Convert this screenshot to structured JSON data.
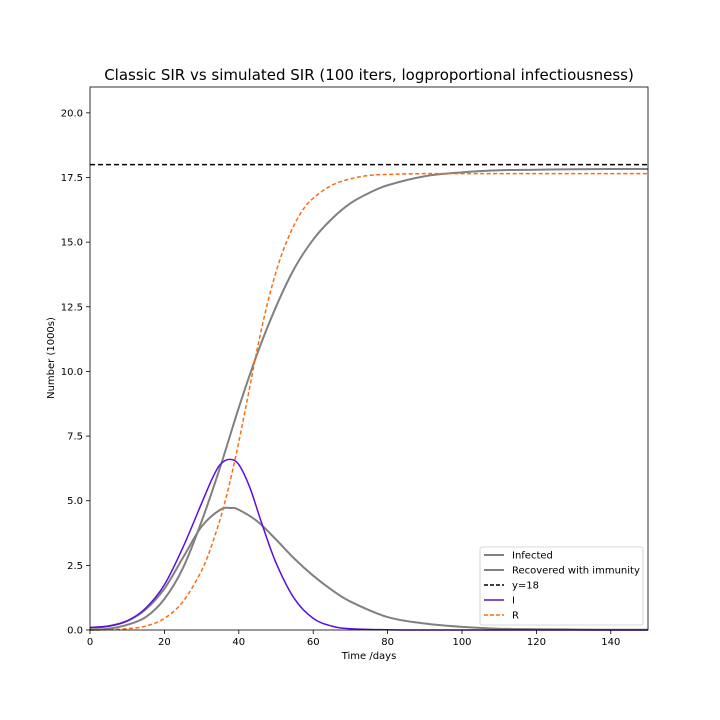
{
  "chart_data": {
    "type": "line",
    "title": "Classic SIR vs simulated SIR (100 iters, logproportional infectiousness)",
    "xlabel": "Time /days",
    "ylabel": "Number (1000s)",
    "xlim": [
      0,
      150
    ],
    "ylim": [
      0,
      21
    ],
    "xticks": [
      0,
      20,
      40,
      60,
      80,
      100,
      120,
      140
    ],
    "yticks": [
      0.0,
      2.5,
      5.0,
      7.5,
      10.0,
      12.5,
      15.0,
      17.5,
      20.0
    ],
    "xtick_labels": [
      "0",
      "20",
      "40",
      "60",
      "80",
      "100",
      "120",
      "140"
    ],
    "ytick_labels": [
      "0.0",
      "2.5",
      "5.0",
      "7.5",
      "10.0",
      "12.5",
      "15.0",
      "17.5",
      "20.0"
    ],
    "grid": false,
    "legend_position": "bottom-right",
    "series": [
      {
        "name": "Infected",
        "color": "#808080",
        "style": "solid",
        "x": [
          0,
          5,
          10,
          15,
          20,
          25,
          30,
          35,
          38,
          40,
          45,
          50,
          55,
          60,
          65,
          70,
          80,
          90,
          100,
          110,
          120,
          130,
          140,
          150
        ],
        "y": [
          0.08,
          0.15,
          0.35,
          0.8,
          1.6,
          2.8,
          4.0,
          4.65,
          4.72,
          4.65,
          4.2,
          3.5,
          2.75,
          2.1,
          1.55,
          1.1,
          0.5,
          0.25,
          0.12,
          0.05,
          0.03,
          0.02,
          0.01,
          0.01
        ]
      },
      {
        "name": "Recovered with immunity",
        "color": "#808080",
        "style": "solid",
        "x": [
          0,
          5,
          10,
          15,
          20,
          25,
          30,
          35,
          40,
          45,
          50,
          55,
          60,
          65,
          70,
          75,
          80,
          90,
          100,
          110,
          120,
          130,
          140,
          150
        ],
        "y": [
          0.0,
          0.05,
          0.2,
          0.5,
          1.2,
          2.4,
          4.2,
          6.3,
          8.6,
          10.7,
          12.5,
          14.0,
          15.1,
          15.9,
          16.5,
          16.9,
          17.2,
          17.55,
          17.7,
          17.78,
          17.8,
          17.82,
          17.83,
          17.83
        ]
      },
      {
        "name": "y=18",
        "color": "#000000",
        "style": "dashed",
        "x": [
          0,
          150
        ],
        "y": [
          18,
          18
        ]
      },
      {
        "name": "I",
        "color": "#5a0fe0",
        "style": "solid",
        "x": [
          0,
          5,
          10,
          15,
          20,
          25,
          30,
          33,
          35,
          37.5,
          40,
          43,
          46,
          50,
          55,
          60,
          65,
          70,
          80,
          90,
          150
        ],
        "y": [
          0.1,
          0.15,
          0.35,
          0.85,
          1.75,
          3.2,
          4.9,
          5.9,
          6.4,
          6.6,
          6.4,
          5.5,
          4.2,
          2.6,
          1.2,
          0.45,
          0.15,
          0.05,
          0.01,
          0.0,
          0.0
        ]
      },
      {
        "name": "R",
        "color": "#ff6a0f",
        "style": "dashed",
        "x": [
          0,
          5,
          10,
          15,
          20,
          25,
          30,
          33,
          36,
          39,
          42,
          45,
          48,
          51,
          54,
          57,
          60,
          65,
          70,
          75,
          80,
          90,
          100,
          150
        ],
        "y": [
          0.0,
          0.01,
          0.05,
          0.15,
          0.45,
          1.1,
          2.3,
          3.4,
          4.8,
          6.6,
          8.7,
          10.9,
          12.8,
          14.3,
          15.4,
          16.2,
          16.7,
          17.2,
          17.45,
          17.58,
          17.62,
          17.65,
          17.65,
          17.65
        ]
      }
    ]
  }
}
